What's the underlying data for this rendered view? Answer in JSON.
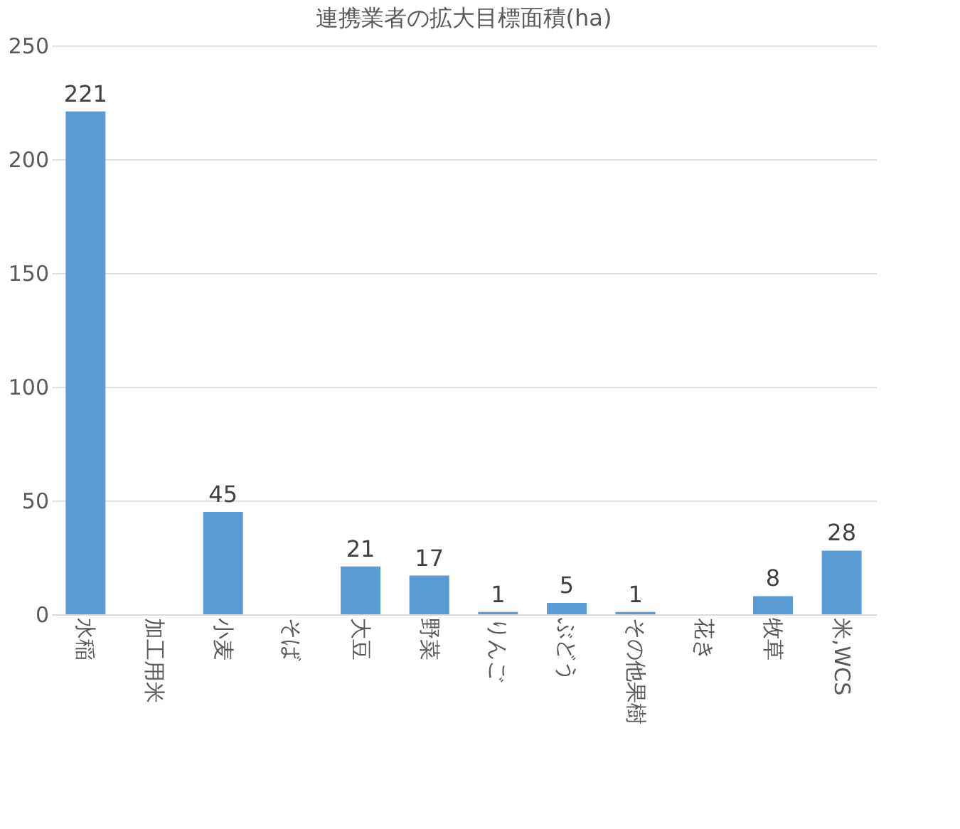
{
  "chart_data": {
    "type": "bar",
    "title": "連携業者の拡大目標面積(ha)",
    "categories": [
      "水稲",
      "加工用米",
      "小麦",
      "そば",
      "大豆",
      "野菜",
      "りんご",
      "ぶどう",
      "その他果樹",
      "花き",
      "牧草",
      "米,WCS"
    ],
    "values": [
      221,
      null,
      45,
      null,
      21,
      17,
      1,
      5,
      1,
      null,
      8,
      28
    ],
    "color": "#5b9bd5",
    "ylim": [
      0,
      250
    ],
    "yticks": [
      0,
      50,
      100,
      150,
      200,
      250
    ],
    "grid": "y",
    "data_labels": true
  }
}
